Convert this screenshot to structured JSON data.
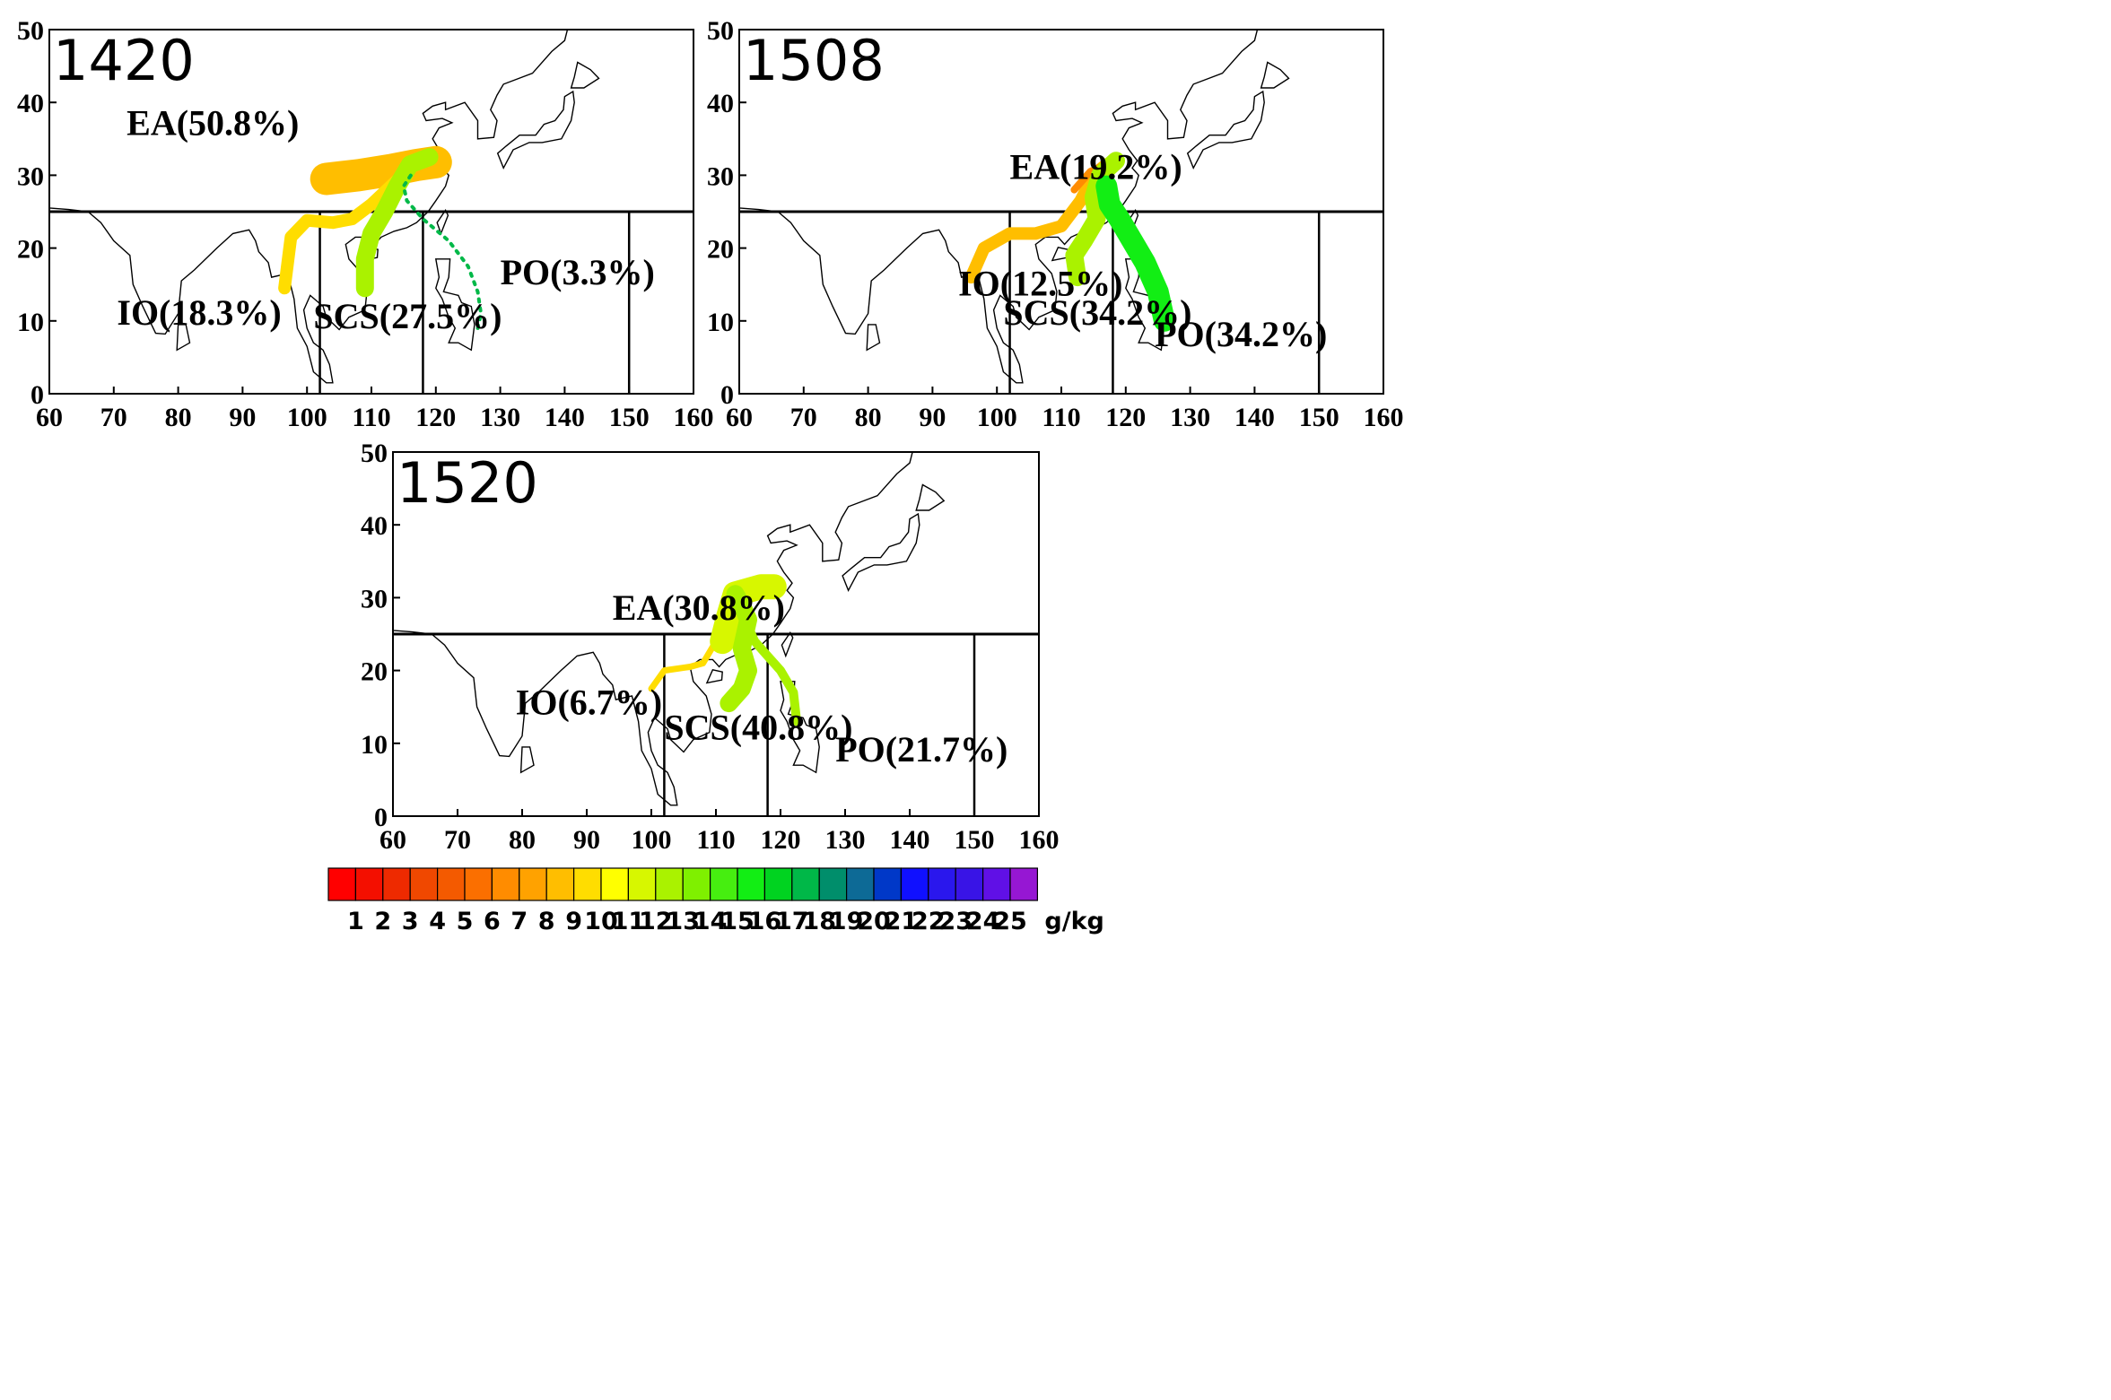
{
  "panels": [
    {
      "case_id": "1420",
      "x_ticks": [
        "60",
        "70",
        "80",
        "90",
        "100",
        "110",
        "120",
        "130",
        "140",
        "150",
        "160"
      ],
      "y_ticks": [
        "0",
        "10",
        "20",
        "30",
        "40",
        "50"
      ],
      "regions": [
        {
          "code": "EA",
          "label": "EA(50.8%)",
          "lon": 72,
          "lat": 35.5
        },
        {
          "code": "IO",
          "label": "IO(18.3%)",
          "lon": 70.5,
          "lat": 9.5
        },
        {
          "code": "SCS",
          "label": "SCS(27.5%)",
          "lon": 101,
          "lat": 9
        },
        {
          "code": "PO",
          "label": "PO(3.3%)",
          "lon": 130,
          "lat": 15
        }
      ],
      "trajectories": [
        {
          "source": "EA",
          "moisture_g_per_kg": 9,
          "points": [
            [
              103,
              29.5
            ],
            [
              108,
              30
            ],
            [
              113,
              30.7
            ],
            [
              117,
              31.4
            ],
            [
              120,
              31.8
            ]
          ]
        },
        {
          "source": "IO",
          "moisture_g_per_kg": 10,
          "points": [
            [
              96.5,
              14.5
            ],
            [
              97,
              18
            ],
            [
              97.5,
              21.5
            ],
            [
              100,
              23.8
            ],
            [
              104,
              23.5
            ],
            [
              107,
              24
            ],
            [
              110,
              26
            ],
            [
              113,
              28.5
            ],
            [
              116,
              31
            ]
          ]
        },
        {
          "source": "SCS",
          "moisture_g_per_kg": 13,
          "points": [
            [
              109,
              14.5
            ],
            [
              109,
              18.5
            ],
            [
              110,
              22
            ],
            [
              112,
              25
            ],
            [
              114,
              28.5
            ],
            [
              116,
              31.5
            ],
            [
              119,
              32.5
            ]
          ]
        },
        {
          "source": "PO",
          "moisture_g_per_kg": 18,
          "points": [
            [
              126.5,
              9
            ],
            [
              127,
              11
            ],
            [
              126.5,
              14
            ],
            [
              125,
              17.5
            ],
            [
              122,
              21
            ],
            [
              118,
              24
            ],
            [
              115.5,
              26.5
            ],
            [
              115,
              28.5
            ],
            [
              116.5,
              30.5
            ]
          ]
        }
      ]
    },
    {
      "case_id": "1508",
      "x_ticks": [
        "60",
        "70",
        "80",
        "90",
        "100",
        "110",
        "120",
        "130",
        "140",
        "150",
        "160"
      ],
      "y_ticks": [
        "0",
        "10",
        "20",
        "30",
        "40",
        "50"
      ],
      "regions": [
        {
          "code": "EA",
          "label": "EA(19.2%)",
          "lon": 102,
          "lat": 29.5
        },
        {
          "code": "IO",
          "label": "IO(12.5%)",
          "lon": 94,
          "lat": 13.5
        },
        {
          "code": "SCS",
          "label": "SCS(34.2%)",
          "lon": 101,
          "lat": 9.5
        },
        {
          "code": "PO",
          "label": "PO(34.2%)",
          "lon": 124.5,
          "lat": 6.5
        }
      ],
      "trajectories": [
        {
          "source": "IO",
          "moisture_g_per_kg": 9,
          "points": [
            [
              96,
              16
            ],
            [
              98,
              20
            ],
            [
              102,
              22
            ],
            [
              106,
              22
            ],
            [
              110,
              23
            ],
            [
              113,
              26.5
            ],
            [
              115,
              30
            ],
            [
              117,
              31.5
            ]
          ]
        },
        {
          "source": "EA",
          "moisture_g_per_kg": 7,
          "points": [
            [
              112,
              28
            ],
            [
              114.5,
              30.5
            ],
            [
              117,
              31.5
            ],
            [
              118.5,
              32
            ]
          ]
        },
        {
          "source": "SCS",
          "moisture_g_per_kg": 13,
          "points": [
            [
              112.5,
              16
            ],
            [
              112,
              19
            ],
            [
              113.5,
              21
            ],
            [
              115.5,
              24
            ],
            [
              115,
              27
            ],
            [
              116,
              30
            ],
            [
              118.5,
              32
            ]
          ]
        },
        {
          "source": "PO",
          "moisture_g_per_kg": 16,
          "points": [
            [
              126,
              10
            ],
            [
              125,
              14
            ],
            [
              123,
              18
            ],
            [
              121,
              21
            ],
            [
              119,
              24
            ],
            [
              117.5,
              26
            ],
            [
              117,
              28.5
            ]
          ]
        }
      ]
    },
    {
      "case_id": "1520",
      "x_ticks": [
        "60",
        "70",
        "80",
        "90",
        "100",
        "110",
        "120",
        "130",
        "140",
        "150",
        "160"
      ],
      "y_ticks": [
        "0",
        "10",
        "20",
        "30",
        "40",
        "50"
      ],
      "regions": [
        {
          "code": "EA",
          "label": "EA(30.8%)",
          "lon": 94,
          "lat": 27
        },
        {
          "code": "IO",
          "label": "IO(6.7%)",
          "lon": 79,
          "lat": 14
        },
        {
          "code": "SCS",
          "label": "SCS(40.8%)",
          "lon": 102,
          "lat": 10.5
        },
        {
          "code": "PO",
          "label": "PO(21.7%)",
          "lon": 128.5,
          "lat": 7.5
        }
      ],
      "trajectories": [
        {
          "source": "IO",
          "moisture_g_per_kg": 10,
          "points": [
            [
              100,
              17.5
            ],
            [
              102,
              20
            ],
            [
              106,
              20.5
            ],
            [
              108,
              21
            ],
            [
              110,
              24
            ]
          ]
        },
        {
          "source": "EA",
          "moisture_g_per_kg": 12,
          "points": [
            [
              111,
              24
            ],
            [
              112,
              27.5
            ],
            [
              113,
              30.5
            ],
            [
              117,
              31.5
            ],
            [
              119,
              31.5
            ]
          ]
        },
        {
          "source": "SCS",
          "moisture_g_per_kg": 13,
          "points": [
            [
              112,
              15.5
            ],
            [
              114,
              17.5
            ],
            [
              115,
              20
            ],
            [
              114,
              23
            ],
            [
              115,
              27
            ],
            [
              114,
              29
            ],
            [
              113,
              30.5
            ]
          ]
        },
        {
          "source": "PO",
          "moisture_g_per_kg": 13,
          "points": [
            [
              122.5,
              13
            ],
            [
              122,
              17
            ],
            [
              120,
              20
            ],
            [
              118,
              22
            ],
            [
              116,
              24
            ],
            [
              114.5,
              27
            ]
          ]
        }
      ]
    }
  ],
  "colorbar": {
    "unit": "g/kg",
    "ticks": [
      "1",
      "2",
      "3",
      "4",
      "5",
      "6",
      "7",
      "8",
      "9",
      "10",
      "11",
      "12",
      "13",
      "14",
      "15",
      "16",
      "17",
      "18",
      "19",
      "20",
      "21",
      "22",
      "23",
      "24",
      "25"
    ],
    "colors": [
      "#ff0000",
      "#f40f00",
      "#ee2a00",
      "#f04800",
      "#f45a00",
      "#fb6f00",
      "#ff8c00",
      "#ffa200",
      "#ffbe00",
      "#ffdd00",
      "#ffff00",
      "#d7f700",
      "#aaf200",
      "#7ff000",
      "#46ee10",
      "#12ee14",
      "#00d320",
      "#00b848",
      "#008e6b",
      "#0d6a96",
      "#0038c8",
      "#1010ff",
      "#2a17ed",
      "#3914e6",
      "#6010e6",
      "#9617d3"
    ]
  }
}
